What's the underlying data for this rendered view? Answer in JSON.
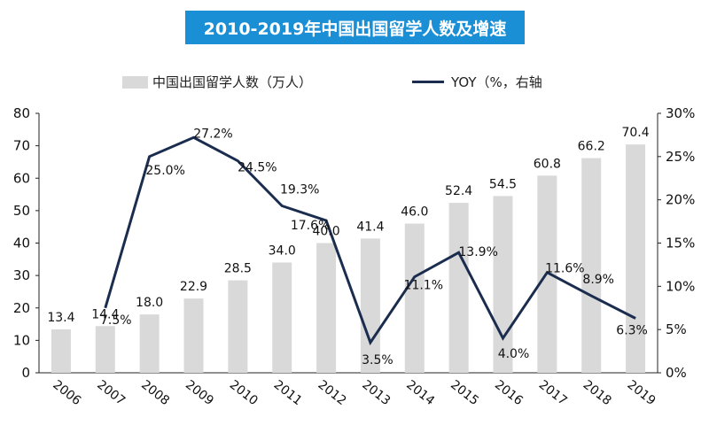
{
  "chart_data": {
    "type": "bar",
    "title": "2010-2019年中国出国留学人数及增速",
    "categories": [
      "2006",
      "2007",
      "2008",
      "2009",
      "2010",
      "2011",
      "2012",
      "2013",
      "2014",
      "2015",
      "2016",
      "2017",
      "2018",
      "2019"
    ],
    "series": [
      {
        "name": "中国出国留学人数（万人）",
        "type": "bar",
        "axis": "left",
        "color": "#d9d9d9",
        "values": [
          13.4,
          14.4,
          18.0,
          22.9,
          28.5,
          34.0,
          40.0,
          41.4,
          46.0,
          52.4,
          54.5,
          60.8,
          66.2,
          70.4
        ],
        "labels": [
          "13.4",
          "14.4",
          "18.0",
          "22.9",
          "28.5",
          "34.0",
          "40.0",
          "41.4",
          "46.0",
          "52.4",
          "54.5",
          "60.8",
          "66.2",
          "70.4"
        ]
      },
      {
        "name": "YOY（%，右轴",
        "type": "line",
        "axis": "right",
        "color": "#1b2d4f",
        "values": [
          null,
          7.5,
          25.0,
          27.2,
          24.5,
          19.3,
          17.6,
          3.5,
          11.1,
          13.9,
          4.0,
          11.6,
          8.9,
          6.3
        ],
        "labels": [
          "",
          "7.5%",
          "25.0%",
          "27.2%",
          "24.5%",
          "19.3%",
          "17.6%",
          "3.5%",
          "11.1%",
          "13.9%",
          "4.0%",
          "11.6%",
          "8.9%",
          "6.3%"
        ]
      }
    ],
    "y_left": {
      "min": 0,
      "max": 80,
      "ticks": [
        "0",
        "10",
        "20",
        "30",
        "40",
        "50",
        "60",
        "70",
        "80"
      ]
    },
    "y_right": {
      "min": 0,
      "max": 30,
      "ticks": [
        "0%",
        "5%",
        "10%",
        "15%",
        "20%",
        "25%",
        "30%"
      ]
    },
    "grid": false,
    "legend_position": "top"
  }
}
